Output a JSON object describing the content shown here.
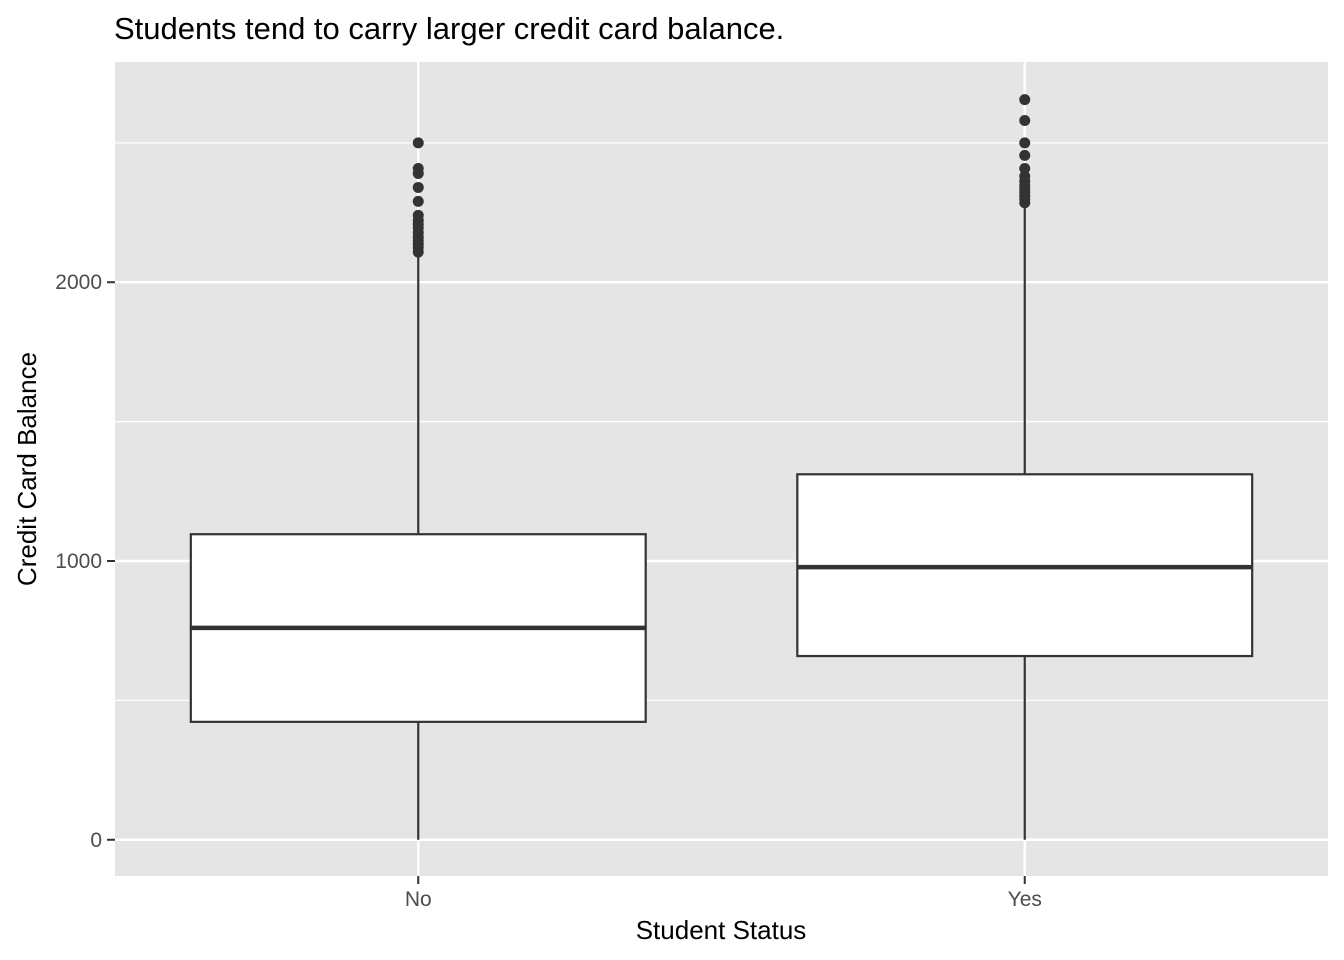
{
  "chart_data": {
    "type": "boxplot",
    "title": "Students tend to carry larger credit card balance.",
    "xlabel": "Student Status",
    "ylabel": "Credit Card Balance",
    "ylim": [
      -130,
      2790
    ],
    "yticks": [
      0,
      1000,
      2000
    ],
    "grid": true,
    "legend": "none",
    "colors": {
      "panel": "#e5e5e5",
      "grid": "#ffffff",
      "box_fill": "#ffffff",
      "box_stroke": "#333333",
      "outlier": "#333333",
      "tick_text": "#4d4d4d"
    },
    "categories": [
      "No",
      "Yes"
    ],
    "boxes": [
      {
        "category": "No",
        "whisker_low": 0,
        "q1": 423,
        "median": 760,
        "q3": 1096,
        "whisker_high": 2095,
        "outliers": [
          2108,
          2125,
          2138,
          2150,
          2162,
          2178,
          2195,
          2208,
          2222,
          2240,
          2290,
          2340,
          2390,
          2408,
          2500
        ]
      },
      {
        "category": "Yes",
        "whisker_low": 0,
        "q1": 659,
        "median": 978,
        "q3": 1311,
        "whisker_high": 2275,
        "outliers": [
          2285,
          2298,
          2310,
          2322,
          2335,
          2348,
          2362,
          2380,
          2408,
          2455,
          2500,
          2580,
          2655
        ]
      }
    ]
  }
}
